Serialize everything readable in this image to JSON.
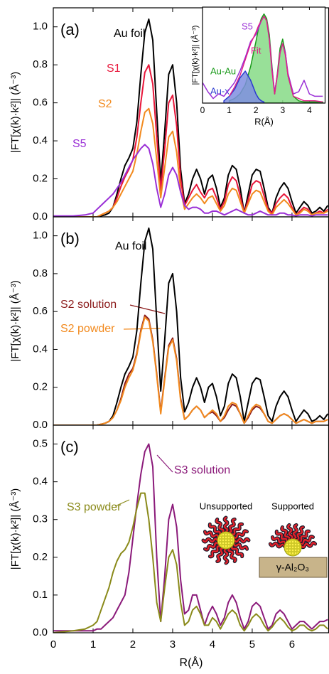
{
  "chart_data": [
    {
      "type": "line",
      "panel_label": "(a)",
      "ylabel": "|FT[χ(k)·k²]| (Å⁻³)",
      "x": [
        0,
        0.5,
        0.8,
        1.0,
        1.1,
        1.2,
        1.3,
        1.4,
        1.5,
        1.6,
        1.7,
        1.8,
        1.9,
        2.0,
        2.1,
        2.2,
        2.3,
        2.4,
        2.5,
        2.6,
        2.7,
        2.8,
        2.9,
        3.0,
        3.1,
        3.2,
        3.3,
        3.4,
        3.5,
        3.6,
        3.7,
        3.8,
        3.9,
        4.0,
        4.1,
        4.2,
        4.3,
        4.4,
        4.5,
        4.6,
        4.7,
        4.8,
        4.9,
        5.0,
        5.1,
        5.2,
        5.3,
        5.4,
        5.5,
        5.6,
        5.7,
        5.8,
        5.9,
        6.0,
        6.1,
        6.2,
        6.3,
        6.4,
        6.5,
        6.6,
        6.7,
        6.8,
        6.9
      ],
      "series": [
        {
          "name": "Au foil",
          "color": "#000000",
          "values": [
            0,
            0,
            0,
            0,
            0,
            0.005,
            0.01,
            0.02,
            0.05,
            0.12,
            0.2,
            0.27,
            0.31,
            0.36,
            0.5,
            0.75,
            0.97,
            1.04,
            0.93,
            0.55,
            0.18,
            0.45,
            0.75,
            0.8,
            0.6,
            0.25,
            0.07,
            0.12,
            0.2,
            0.25,
            0.2,
            0.12,
            0.2,
            0.22,
            0.15,
            0.05,
            0.1,
            0.22,
            0.27,
            0.25,
            0.15,
            0.02,
            0.12,
            0.22,
            0.25,
            0.24,
            0.15,
            0.05,
            0.02,
            0.1,
            0.15,
            0.18,
            0.15,
            0.08,
            0.02,
            0.05,
            0.08,
            0.06,
            0.02,
            0.03,
            0.05,
            0.03,
            0.06
          ]
        },
        {
          "name": "S1",
          "color": "#e8173b",
          "values": [
            0,
            0,
            0,
            0,
            0,
            0.01,
            0.02,
            0.03,
            0.05,
            0.1,
            0.16,
            0.21,
            0.25,
            0.3,
            0.42,
            0.6,
            0.76,
            0.8,
            0.7,
            0.42,
            0.14,
            0.36,
            0.6,
            0.64,
            0.48,
            0.2,
            0.06,
            0.1,
            0.14,
            0.17,
            0.13,
            0.1,
            0.14,
            0.15,
            0.1,
            0.04,
            0.08,
            0.17,
            0.21,
            0.19,
            0.11,
            0.02,
            0.09,
            0.17,
            0.19,
            0.18,
            0.11,
            0.04,
            0.02,
            0.07,
            0.1,
            0.12,
            0.1,
            0.05,
            0.01,
            0.03,
            0.05,
            0.04,
            0.01,
            0.02,
            0.03,
            0.02,
            0.04
          ]
        },
        {
          "name": "S2",
          "color": "#f28a1e",
          "values": [
            0,
            0,
            0,
            0,
            0,
            0.01,
            0.02,
            0.03,
            0.05,
            0.08,
            0.12,
            0.16,
            0.2,
            0.24,
            0.33,
            0.45,
            0.55,
            0.57,
            0.49,
            0.3,
            0.1,
            0.26,
            0.42,
            0.45,
            0.34,
            0.14,
            0.04,
            0.07,
            0.1,
            0.12,
            0.1,
            0.07,
            0.1,
            0.11,
            0.07,
            0.03,
            0.06,
            0.12,
            0.15,
            0.14,
            0.08,
            0.02,
            0.07,
            0.12,
            0.14,
            0.13,
            0.08,
            0.03,
            0.01,
            0.05,
            0.07,
            0.09,
            0.07,
            0.04,
            0.01,
            0.02,
            0.04,
            0.03,
            0.01,
            0.02,
            0.02,
            0.02,
            0.03
          ]
        },
        {
          "name": "S5",
          "color": "#9a2fd6",
          "values": [
            0.005,
            0.005,
            0.01,
            0.02,
            0.04,
            0.06,
            0.08,
            0.1,
            0.12,
            0.15,
            0.18,
            0.22,
            0.26,
            0.3,
            0.33,
            0.36,
            0.38,
            0.36,
            0.28,
            0.15,
            0.05,
            0.12,
            0.22,
            0.26,
            0.22,
            0.13,
            0.06,
            0.04,
            0.05,
            0.05,
            0.04,
            0.02,
            0.02,
            0.03,
            0.03,
            0.02,
            0.01,
            0.02,
            0.03,
            0.04,
            0.03,
            0.02,
            0.01,
            0.01,
            0.02,
            0.03,
            0.02,
            0.01,
            0.01,
            0.01,
            0.02,
            0.02,
            0.01,
            0.01,
            0.005,
            0.01,
            0.01,
            0.01,
            0.005,
            0.01,
            0.01,
            0.01,
            0.01
          ]
        }
      ],
      "xlim": [
        0,
        6.93
      ],
      "ylim": [
        0,
        1.1
      ],
      "xticks": [
        0,
        1,
        2,
        3,
        4,
        5,
        6
      ],
      "xtick_labels": false,
      "yticks": [
        {
          "value": 0,
          "label": "0.0"
        },
        0.2,
        0.4,
        0.6,
        0.8,
        {
          "value": 1,
          "label": "1.0"
        }
      ]
    },
    {
      "type": "line",
      "xlabel": "R(Å)",
      "ylabel": "|FT[χ(k)·k²]| (Å⁻³)",
      "x": [
        0,
        0.2,
        0.4,
        0.6,
        0.8,
        1.0,
        1.2,
        1.4,
        1.6,
        1.8,
        2.0,
        2.1,
        2.2,
        2.3,
        2.4,
        2.5,
        2.6,
        2.7,
        2.8,
        2.9,
        3.0,
        3.1,
        3.2,
        3.4,
        3.6,
        3.8,
        4.0,
        4.2,
        4.5
      ],
      "series": [
        {
          "name": "S5",
          "color": "#9a2fd6",
          "values": [
            0.09,
            0.05,
            0.02,
            0.04,
            0.03,
            0.06,
            0.09,
            0.14,
            0.2,
            0.27,
            0.3,
            0.33,
            0.36,
            0.38,
            0.36,
            0.28,
            0.15,
            0.05,
            0.12,
            0.22,
            0.26,
            0.22,
            0.13,
            0.04,
            0.05,
            0.1,
            0.04,
            0.03,
            0.03
          ]
        },
        {
          "name": "Fit",
          "color": "#e0218a",
          "values": [
            null,
            null,
            null,
            null,
            null,
            0.03,
            0.07,
            0.12,
            0.19,
            0.26,
            0.31,
            0.34,
            0.36,
            0.38,
            0.36,
            0.28,
            0.14,
            0.04,
            0.12,
            0.22,
            0.26,
            0.21,
            0.12,
            0.03,
            0.02,
            0.01,
            0.01,
            0.01,
            0.005
          ]
        },
        {
          "name": "Au-Au",
          "color": "#1a9a1a",
          "fill": "#86db86",
          "values": [
            null,
            null,
            null,
            null,
            null,
            0.01,
            0.02,
            0.04,
            0.08,
            0.16,
            0.27,
            0.33,
            0.37,
            0.39,
            0.37,
            0.3,
            0.16,
            0.04,
            0.13,
            0.24,
            0.28,
            0.22,
            0.12,
            0.03,
            0.01,
            0.005,
            0.005,
            0.005,
            0.005
          ]
        },
        {
          "name": "Au-x",
          "color": "#2a3ad0",
          "fill": "#7f8ee0",
          "values": [
            null,
            null,
            null,
            null,
            0.01,
            0.03,
            0.06,
            0.11,
            0.14,
            0.1,
            0.04,
            0.02,
            0.01,
            0.005,
            null,
            null,
            null,
            null,
            null,
            null,
            null,
            null,
            null,
            null,
            null,
            null,
            null,
            null,
            null
          ]
        }
      ],
      "xlim": [
        0,
        4.6
      ],
      "ylim": [
        0,
        0.42
      ],
      "xticks": [
        0,
        1,
        2,
        3,
        4
      ]
    },
    {
      "type": "line",
      "panel_label": "(b)",
      "ylabel": "|FT[χ(k)·k²]| (Å⁻³)",
      "x": [
        0,
        0.5,
        0.8,
        1.0,
        1.1,
        1.2,
        1.3,
        1.4,
        1.5,
        1.6,
        1.7,
        1.8,
        1.9,
        2.0,
        2.1,
        2.2,
        2.3,
        2.4,
        2.5,
        2.6,
        2.7,
        2.8,
        2.9,
        3.0,
        3.1,
        3.2,
        3.3,
        3.4,
        3.5,
        3.6,
        3.7,
        3.8,
        3.9,
        4.0,
        4.1,
        4.2,
        4.3,
        4.4,
        4.5,
        4.6,
        4.7,
        4.8,
        4.9,
        5.0,
        5.1,
        5.2,
        5.3,
        5.4,
        5.5,
        5.6,
        5.7,
        5.8,
        5.9,
        6.0,
        6.1,
        6.2,
        6.3,
        6.4,
        6.5,
        6.6,
        6.7,
        6.8,
        6.9
      ],
      "series": [
        {
          "name": "Au foil",
          "color": "#000000",
          "values": [
            0,
            0,
            0,
            0,
            0,
            0.005,
            0.01,
            0.02,
            0.05,
            0.12,
            0.2,
            0.27,
            0.31,
            0.36,
            0.5,
            0.75,
            0.97,
            1.04,
            0.93,
            0.55,
            0.18,
            0.45,
            0.75,
            0.8,
            0.6,
            0.25,
            0.07,
            0.12,
            0.2,
            0.25,
            0.2,
            0.12,
            0.2,
            0.22,
            0.15,
            0.05,
            0.1,
            0.22,
            0.27,
            0.25,
            0.15,
            0.02,
            0.12,
            0.22,
            0.25,
            0.24,
            0.15,
            0.05,
            0.02,
            0.1,
            0.15,
            0.18,
            0.15,
            0.08,
            0.02,
            0.05,
            0.08,
            0.06,
            0.02,
            0.03,
            0.05,
            0.03,
            0.06
          ]
        },
        {
          "name": "S2 solution",
          "color": "#8b1a1a",
          "values": [
            0,
            0,
            0,
            0,
            0,
            0.005,
            0.01,
            0.02,
            0.04,
            0.08,
            0.14,
            0.22,
            0.27,
            0.3,
            0.38,
            0.5,
            0.58,
            0.56,
            0.45,
            0.27,
            0.07,
            0.25,
            0.42,
            0.46,
            0.35,
            0.14,
            0.03,
            0.05,
            0.08,
            0.1,
            0.08,
            0.04,
            0.06,
            0.07,
            0.05,
            0.02,
            0.04,
            0.08,
            0.11,
            0.1,
            0.06,
            0.01,
            0.04,
            0.08,
            0.1,
            0.09,
            0.06,
            0.02,
            0.01,
            0.03,
            0.05,
            0.06,
            0.05,
            0.03,
            0.01,
            0.02,
            0.03,
            0.02,
            0.01,
            0.02,
            0.02,
            0.02,
            0.03
          ]
        },
        {
          "name": "S2 powder",
          "color": "#f28a1e",
          "values": [
            0,
            0,
            0,
            0,
            0,
            0.005,
            0.01,
            0.02,
            0.04,
            0.08,
            0.13,
            0.2,
            0.25,
            0.29,
            0.37,
            0.49,
            0.57,
            0.55,
            0.44,
            0.26,
            0.06,
            0.24,
            0.41,
            0.45,
            0.34,
            0.13,
            0.03,
            0.05,
            0.08,
            0.1,
            0.08,
            0.04,
            0.06,
            0.08,
            0.06,
            0.02,
            0.05,
            0.1,
            0.12,
            0.11,
            0.06,
            0.01,
            0.05,
            0.09,
            0.11,
            0.1,
            0.06,
            0.02,
            0.01,
            0.03,
            0.05,
            0.06,
            0.05,
            0.03,
            0.01,
            0.02,
            0.03,
            0.02,
            0.01,
            0.02,
            0.02,
            0.02,
            0.03
          ]
        }
      ],
      "xlim": [
        0,
        6.93
      ],
      "ylim": [
        0,
        1.1
      ],
      "xticks": [
        0,
        1,
        2,
        3,
        4,
        5,
        6
      ],
      "xtick_labels": false,
      "yticks": [
        {
          "value": 0,
          "label": "0.0"
        },
        0.2,
        0.4,
        0.6,
        0.8,
        {
          "value": 1,
          "label": "1.0"
        }
      ]
    },
    {
      "type": "line",
      "panel_label": "(c)",
      "xlabel": "R(Å)",
      "ylabel": "|FT[χ(k)·k²]| (Å⁻³)",
      "x": [
        0,
        0.5,
        0.8,
        1.0,
        1.1,
        1.2,
        1.3,
        1.4,
        1.5,
        1.6,
        1.7,
        1.8,
        1.9,
        2.0,
        2.1,
        2.2,
        2.3,
        2.4,
        2.5,
        2.6,
        2.7,
        2.8,
        2.9,
        3.0,
        3.1,
        3.2,
        3.3,
        3.4,
        3.5,
        3.6,
        3.7,
        3.8,
        3.9,
        4.0,
        4.1,
        4.2,
        4.3,
        4.4,
        4.5,
        4.6,
        4.7,
        4.8,
        4.9,
        5.0,
        5.1,
        5.2,
        5.3,
        5.4,
        5.5,
        5.6,
        5.7,
        5.8,
        5.9,
        6.0,
        6.1,
        6.2,
        6.3,
        6.4,
        6.5,
        6.6,
        6.7,
        6.8,
        6.9
      ],
      "series": [
        {
          "name": "S3 solution",
          "color": "#8b1a7a",
          "values": [
            0.005,
            0.005,
            0.005,
            0.005,
            0.01,
            0.01,
            0.02,
            0.03,
            0.04,
            0.06,
            0.08,
            0.1,
            0.16,
            0.25,
            0.34,
            0.42,
            0.48,
            0.5,
            0.44,
            0.2,
            0.03,
            0.15,
            0.3,
            0.34,
            0.28,
            0.14,
            0.05,
            0.06,
            0.1,
            0.1,
            0.06,
            0.02,
            0.05,
            0.07,
            0.05,
            0.02,
            0.04,
            0.08,
            0.1,
            0.08,
            0.04,
            0.01,
            0.03,
            0.07,
            0.08,
            0.07,
            0.04,
            0.01,
            0.02,
            0.05,
            0.06,
            0.05,
            0.03,
            0.01,
            0.02,
            0.03,
            0.03,
            0.02,
            0.01,
            0.02,
            0.03,
            0.03,
            0.035
          ]
        },
        {
          "name": "S3 powder",
          "color": "#8a8a1a",
          "values": [
            0,
            0.005,
            0.01,
            0.02,
            0.03,
            0.06,
            0.09,
            0.12,
            0.16,
            0.19,
            0.21,
            0.22,
            0.24,
            0.28,
            0.33,
            0.37,
            0.37,
            0.3,
            0.2,
            0.08,
            0.03,
            0.12,
            0.2,
            0.22,
            0.18,
            0.08,
            0.02,
            0.03,
            0.06,
            0.07,
            0.05,
            0.02,
            0.02,
            0.04,
            0.03,
            0.01,
            0.03,
            0.05,
            0.06,
            0.05,
            0.02,
            0.005,
            0.02,
            0.04,
            0.05,
            0.04,
            0.02,
            0.005,
            0.015,
            0.03,
            0.04,
            0.03,
            0.015,
            0.005,
            0.01,
            0.02,
            0.02,
            0.01,
            0.005,
            0.01,
            0.02,
            0.02,
            0.01
          ]
        }
      ],
      "xlim": [
        0,
        6.93
      ],
      "ylim": [
        0,
        0.55
      ],
      "xticks": [
        0,
        1,
        2,
        3,
        4,
        5,
        6
      ],
      "yticks": [
        {
          "value": 0,
          "label": "0.0"
        },
        0.1,
        0.2,
        0.3,
        0.4,
        0.5
      ],
      "annotations": [
        "Unsupported",
        "Supported",
        "γ-Al₂O₃"
      ]
    }
  ]
}
